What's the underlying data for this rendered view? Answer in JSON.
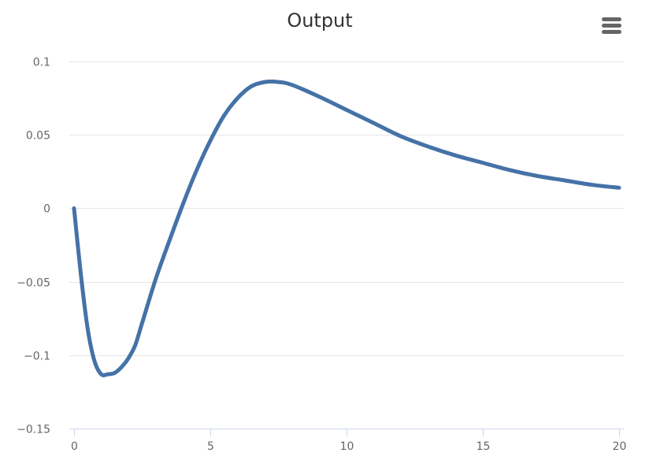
{
  "chart_data": {
    "type": "line",
    "title": "Output",
    "xlabel": "",
    "ylabel": "",
    "xlim": [
      0,
      20
    ],
    "ylim": [
      -0.15,
      0.1
    ],
    "x_ticks": [
      0,
      5,
      10,
      15,
      20
    ],
    "x_tick_labels": [
      "0",
      "5",
      "10",
      "15",
      "20"
    ],
    "y_ticks": [
      0.1,
      0.05,
      0,
      -0.05,
      -0.1,
      -0.15
    ],
    "y_tick_labels": [
      "0.1",
      "0.05",
      "0",
      "−0.05",
      "−0.1",
      "−0.15"
    ],
    "grid": true,
    "series": [
      {
        "color": "#4572a7",
        "x": [
          0,
          0.25,
          0.5,
          0.75,
          1.0,
          1.25,
          1.5,
          1.75,
          2.0,
          2.25,
          2.5,
          3.0,
          3.5,
          4.0,
          4.5,
          5.0,
          5.5,
          6.0,
          6.5,
          7.0,
          7.5,
          8.0,
          9.0,
          10.0,
          11.0,
          12.0,
          13.0,
          14.0,
          15.0,
          16.0,
          17.0,
          18.0,
          19.0,
          20.0
        ],
        "y": [
          0,
          -0.045,
          -0.082,
          -0.104,
          -0.113,
          -0.113,
          -0.112,
          -0.108,
          -0.102,
          -0.093,
          -0.078,
          -0.048,
          -0.022,
          0.003,
          0.026,
          0.046,
          0.063,
          0.075,
          0.083,
          0.086,
          0.086,
          0.084,
          0.076,
          0.067,
          0.058,
          0.049,
          0.042,
          0.036,
          0.031,
          0.026,
          0.022,
          0.019,
          0.016,
          0.014
        ]
      }
    ]
  },
  "menu": {
    "icon": "hamburger-menu-icon"
  }
}
